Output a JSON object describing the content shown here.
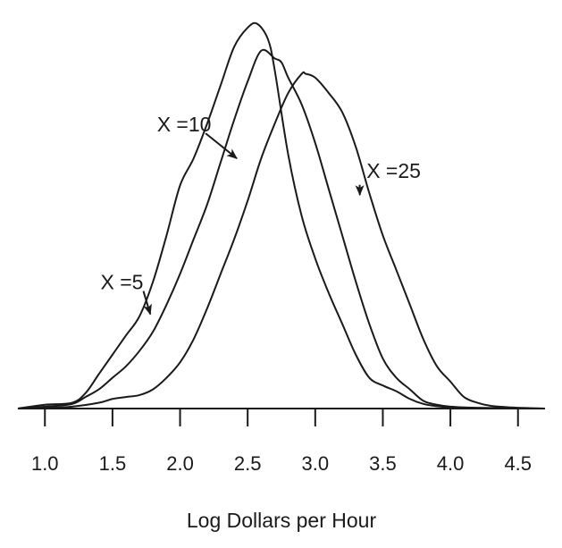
{
  "chart_data": {
    "type": "line",
    "title": "",
    "xlabel": "Log Dollars per Hour",
    "ylabel": "",
    "xlim": [
      0.8,
      4.7
    ],
    "ylim": [
      0,
      1.02
    ],
    "grid": false,
    "legend": "none",
    "x_ticks": [
      1.0,
      1.5,
      2.0,
      2.5,
      3.0,
      3.5,
      4.0,
      4.5
    ],
    "x_tick_labels": [
      "1.0",
      "1.5",
      "2.0",
      "2.5",
      "3.0",
      "3.5",
      "4.0",
      "4.5"
    ],
    "line_color": "#1a1a1a",
    "series": [
      {
        "points": [
          [
            0.8,
            0.0
          ],
          [
            1.0,
            0.01
          ],
          [
            1.2,
            0.015
          ],
          [
            1.3,
            0.04
          ],
          [
            1.4,
            0.09
          ],
          [
            1.5,
            0.14
          ],
          [
            1.6,
            0.19
          ],
          [
            1.7,
            0.24
          ],
          [
            1.8,
            0.33
          ],
          [
            1.9,
            0.45
          ],
          [
            2.0,
            0.58
          ],
          [
            2.1,
            0.65
          ],
          [
            2.2,
            0.74
          ],
          [
            2.3,
            0.84
          ],
          [
            2.4,
            0.94
          ],
          [
            2.5,
            0.99
          ],
          [
            2.57,
            1.0
          ],
          [
            2.65,
            0.96
          ],
          [
            2.7,
            0.88
          ],
          [
            2.8,
            0.66
          ],
          [
            2.9,
            0.5
          ],
          [
            3.0,
            0.39
          ],
          [
            3.1,
            0.3
          ],
          [
            3.2,
            0.22
          ],
          [
            3.3,
            0.14
          ],
          [
            3.4,
            0.08
          ],
          [
            3.5,
            0.06
          ],
          [
            3.6,
            0.045
          ],
          [
            3.7,
            0.025
          ],
          [
            3.8,
            0.012
          ],
          [
            3.9,
            0.006
          ],
          [
            4.0,
            0.003
          ],
          [
            4.2,
            0.001
          ],
          [
            4.7,
            0.0
          ]
        ]
      },
      {
        "points": [
          [
            0.8,
            0.0
          ],
          [
            1.0,
            0.005
          ],
          [
            1.2,
            0.012
          ],
          [
            1.3,
            0.03
          ],
          [
            1.4,
            0.05
          ],
          [
            1.5,
            0.08
          ],
          [
            1.6,
            0.11
          ],
          [
            1.7,
            0.15
          ],
          [
            1.8,
            0.2
          ],
          [
            1.9,
            0.27
          ],
          [
            2.0,
            0.35
          ],
          [
            2.1,
            0.44
          ],
          [
            2.2,
            0.53
          ],
          [
            2.3,
            0.64
          ],
          [
            2.4,
            0.75
          ],
          [
            2.5,
            0.85
          ],
          [
            2.6,
            0.93
          ],
          [
            2.7,
            0.91
          ],
          [
            2.75,
            0.9
          ],
          [
            2.8,
            0.86
          ],
          [
            2.9,
            0.79
          ],
          [
            3.0,
            0.69
          ],
          [
            3.1,
            0.57
          ],
          [
            3.2,
            0.45
          ],
          [
            3.3,
            0.33
          ],
          [
            3.4,
            0.22
          ],
          [
            3.5,
            0.13
          ],
          [
            3.6,
            0.08
          ],
          [
            3.7,
            0.05
          ],
          [
            3.8,
            0.02
          ],
          [
            3.9,
            0.01
          ],
          [
            4.0,
            0.005
          ],
          [
            4.2,
            0.002
          ],
          [
            4.7,
            0.0
          ]
        ]
      },
      {
        "points": [
          [
            0.8,
            0.0
          ],
          [
            1.0,
            0.002
          ],
          [
            1.2,
            0.005
          ],
          [
            1.4,
            0.015
          ],
          [
            1.5,
            0.025
          ],
          [
            1.6,
            0.03
          ],
          [
            1.7,
            0.035
          ],
          [
            1.8,
            0.05
          ],
          [
            1.9,
            0.08
          ],
          [
            2.0,
            0.12
          ],
          [
            2.1,
            0.18
          ],
          [
            2.2,
            0.26
          ],
          [
            2.3,
            0.35
          ],
          [
            2.4,
            0.44
          ],
          [
            2.5,
            0.54
          ],
          [
            2.6,
            0.65
          ],
          [
            2.7,
            0.74
          ],
          [
            2.8,
            0.82
          ],
          [
            2.9,
            0.87
          ],
          [
            2.93,
            0.87
          ],
          [
            3.0,
            0.86
          ],
          [
            3.1,
            0.82
          ],
          [
            3.2,
            0.77
          ],
          [
            3.3,
            0.68
          ],
          [
            3.4,
            0.56
          ],
          [
            3.5,
            0.45
          ],
          [
            3.6,
            0.36
          ],
          [
            3.7,
            0.27
          ],
          [
            3.8,
            0.18
          ],
          [
            3.9,
            0.11
          ],
          [
            4.0,
            0.07
          ],
          [
            4.1,
            0.03
          ],
          [
            4.2,
            0.015
          ],
          [
            4.3,
            0.007
          ],
          [
            4.45,
            0.003
          ],
          [
            4.6,
            0.001
          ],
          [
            4.7,
            0.0
          ]
        ]
      }
    ],
    "annotations": [
      {
        "text": "X =10",
        "text_x": 2.03,
        "text_y": 0.72,
        "tip_x": 2.42,
        "tip_y": 0.65
      },
      {
        "text": "X =5",
        "text_x": 1.57,
        "text_y": 0.31,
        "tip_x": 1.78,
        "tip_y": 0.245
      },
      {
        "text": "X =25",
        "text_x": 3.58,
        "text_y": 0.6,
        "tip_x": 3.33,
        "tip_y": 0.555
      }
    ]
  }
}
